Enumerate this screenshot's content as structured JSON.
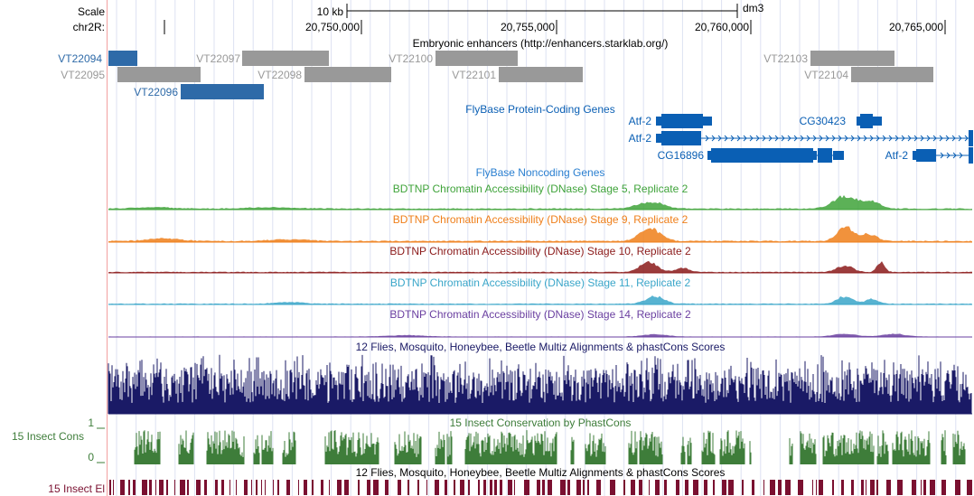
{
  "ruler": {
    "scale_label": "Scale",
    "scale_value": "10 kb",
    "assembly": "dm3",
    "chrom_label": "chr2R:",
    "positions": [
      "20,750,000",
      "20,755,000",
      "20,760,000",
      "20,765,000"
    ]
  },
  "enhancers": {
    "title": "Embryonic enhancers (http://enhancers.starklab.org/)",
    "items": [
      {
        "name": "VT22094",
        "color": "#2e6aa8"
      },
      {
        "name": "VT22095",
        "color": "#999999"
      },
      {
        "name": "VT22096",
        "color": "#2e6aa8"
      },
      {
        "name": "VT22097",
        "color": "#999999"
      },
      {
        "name": "VT22098",
        "color": "#999999"
      },
      {
        "name": "VT22100",
        "color": "#999999"
      },
      {
        "name": "VT22101",
        "color": "#999999"
      },
      {
        "name": "VT22103",
        "color": "#999999"
      },
      {
        "name": "VT22104",
        "color": "#999999"
      }
    ]
  },
  "genes": {
    "title": "FlyBase Protein-Coding Genes",
    "color": "#0a5fb4",
    "labels": [
      "Atf-2",
      "CG30423",
      "Atf-2",
      "CG16896",
      "Atf-2"
    ]
  },
  "noncoding": {
    "title": "FlyBase Noncoding Genes",
    "color": "#2a7fd0"
  },
  "dnase": [
    {
      "title": "BDTNP Chromatin Accessibility (DNase) Stage 5, Replicate 2",
      "color": "#3fa33a"
    },
    {
      "title": "BDTNP Chromatin Accessibility (DNase) Stage 9, Replicate 2",
      "color": "#ef7f1a"
    },
    {
      "title": "BDTNP Chromatin Accessibility (DNase) Stage 10, Replicate 2",
      "color": "#8b1a1a"
    },
    {
      "title": "BDTNP Chromatin Accessibility (DNase) Stage 11, Replicate 2",
      "color": "#3aa6c9"
    },
    {
      "title": "BDTNP Chromatin Accessibility (DNase) Stage 14, Replicate 2",
      "color": "#6a3fa0"
    }
  ],
  "multiz": {
    "title": "12 Flies, Mosquito, Honeybee, Beetle Multiz Alignments & phastCons Scores",
    "color": "#1a1a66"
  },
  "phastcons": {
    "title": "15 Insect Conservation by PhastCons",
    "side_label": "15 Insect Cons",
    "y_top": "1",
    "y_bottom": "0",
    "color": "#3e7d3a"
  },
  "elements": {
    "title": "12 Flies, Mosquito, Honeybee, Beetle Multiz Alignments & phastCons Scores",
    "side_label": "15 Insect El",
    "color": "#7a1030"
  }
}
